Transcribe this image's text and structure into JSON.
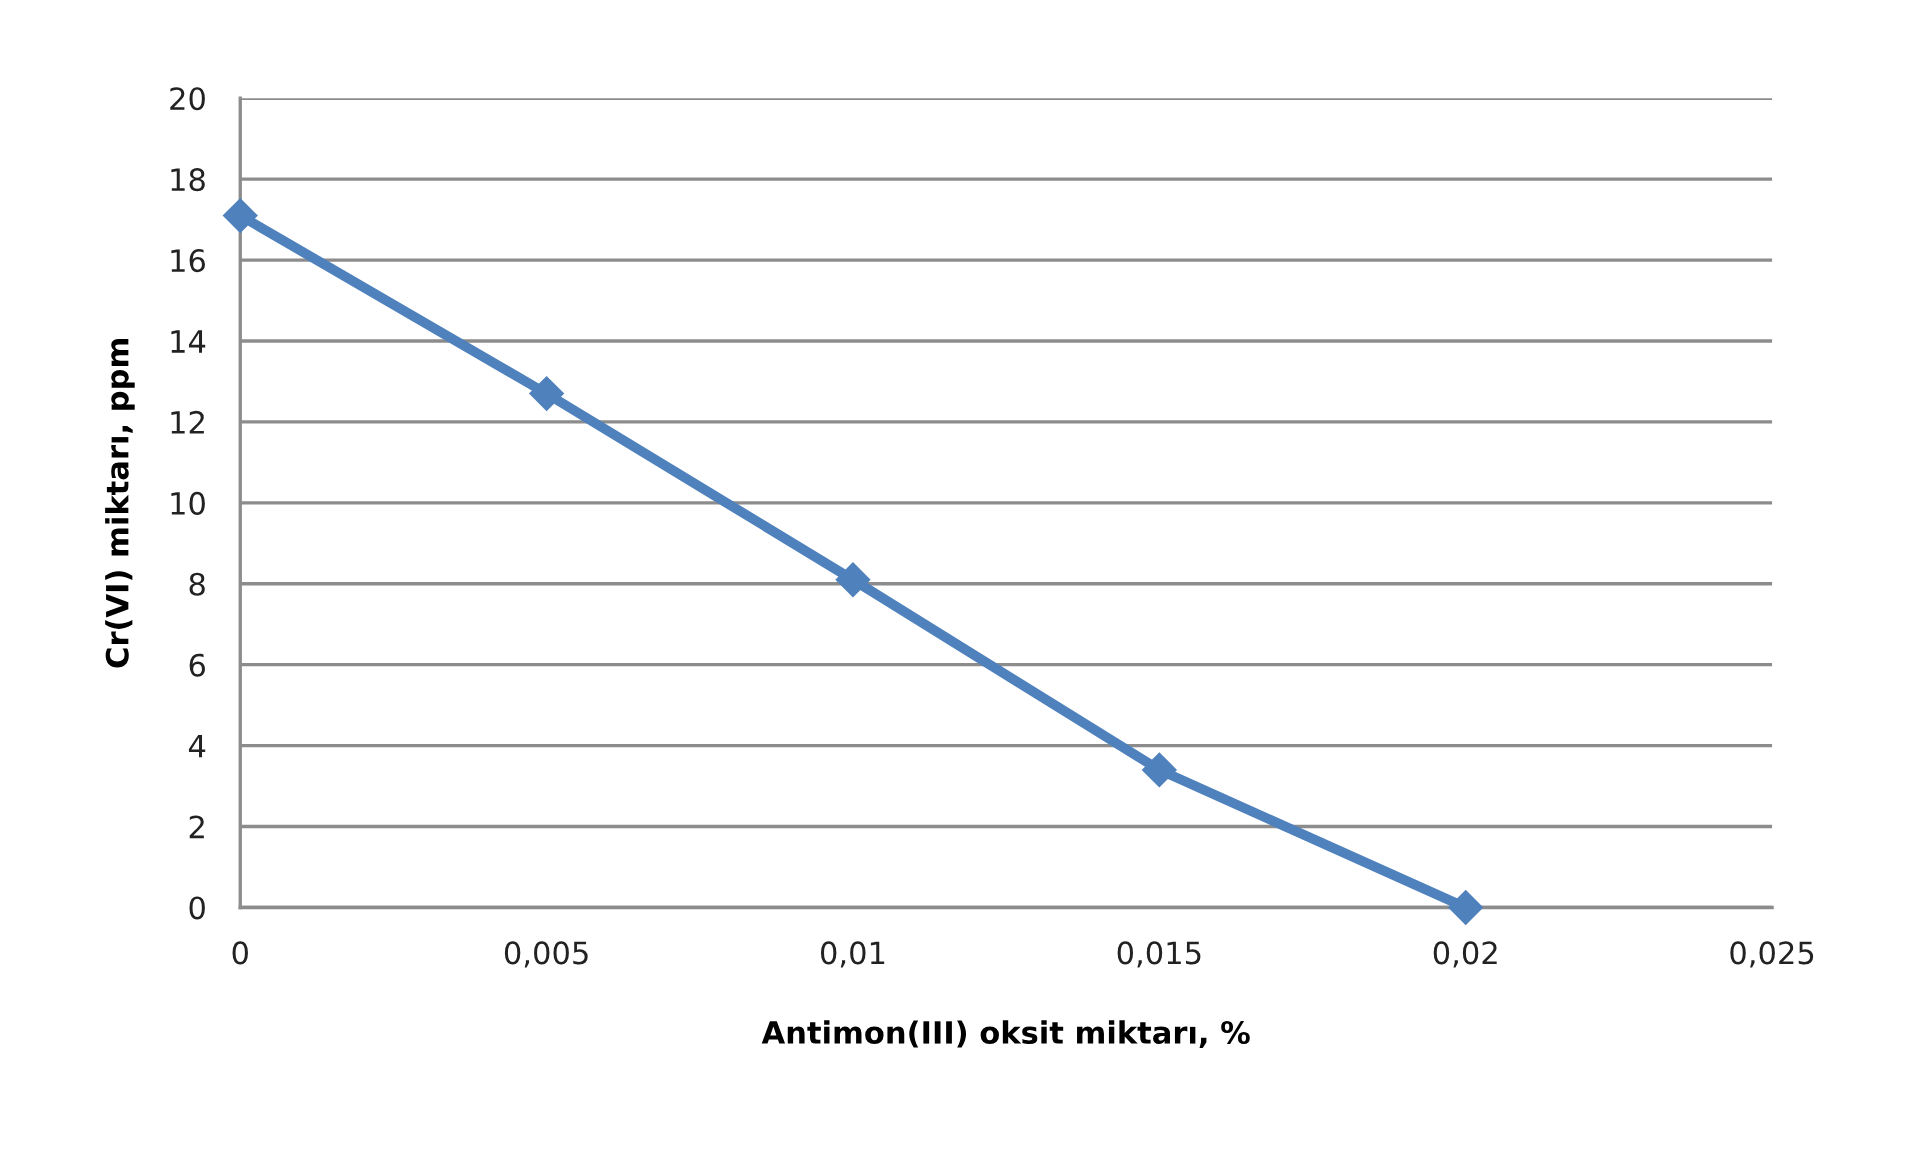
{
  "chart_data": {
    "type": "line",
    "xlabel": "Antimon(III) oksit miktarı, %",
    "ylabel": "Cr(VI) miktarı, ppm",
    "x": [
      0,
      0.005,
      0.01,
      0.015,
      0.02
    ],
    "series": [
      {
        "color": "#4f81bd",
        "values": [
          17.1,
          12.7,
          8.1,
          3.4,
          0
        ]
      }
    ],
    "xlim": [
      0,
      0.025
    ],
    "xticks": [
      0,
      {
        "value": 0.005,
        "label": "0,005"
      },
      {
        "value": 0.01,
        "label": "0,01"
      },
      {
        "value": 0.015,
        "label": "0,015"
      },
      {
        "value": 0.02,
        "label": "0,02"
      },
      {
        "value": 0.025,
        "label": "0,025"
      }
    ],
    "ylim": [
      0,
      20
    ],
    "yticks": [
      0,
      2,
      4,
      6,
      8,
      10,
      12,
      14,
      16,
      18,
      20
    ],
    "grid": "y",
    "marker": "diamond",
    "line_style": "solid"
  }
}
